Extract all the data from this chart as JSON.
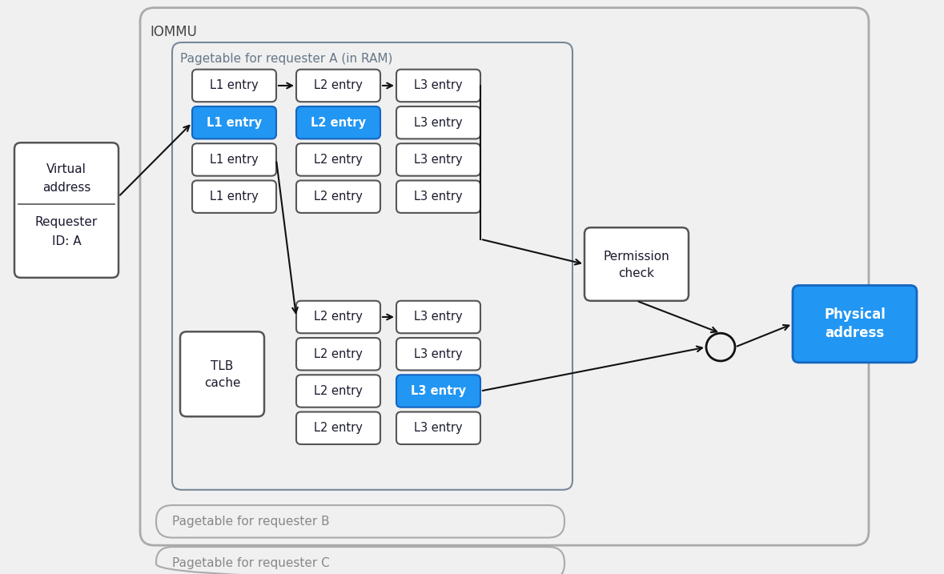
{
  "bg_color": "#f0f0f0",
  "iommu_label": "IOMMU",
  "pagetable_a_label": "Pagetable for requester A (in RAM)",
  "pagetable_b_label": "Pagetable for requester B",
  "pagetable_c_label": "Pagetable for requester C",
  "virtual_addr_lines": [
    "Virtual",
    "address",
    "Requester",
    "ID: A"
  ],
  "permission_lines": [
    "Permission",
    "check"
  ],
  "physical_lines": [
    "Physical",
    "address"
  ],
  "tlb_lines": [
    "TLB",
    "cache"
  ],
  "blue_fill": "#2196F3",
  "blue_border": "#1565C0",
  "white_fill": "#ffffff",
  "dark_text": "#1a1a2e",
  "gray_border": "#555555",
  "light_gray_border": "#888888",
  "outer_border": "#aaaaaa",
  "entry_label": "entry",
  "box_bg": "#f0f0f0"
}
